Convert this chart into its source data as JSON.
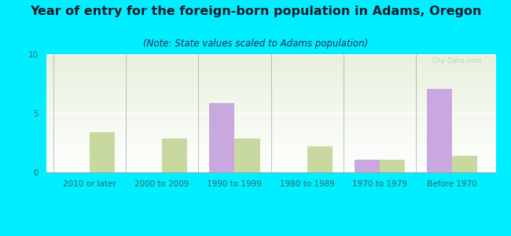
{
  "title": "Year of entry for the foreign-born population in Adams, Oregon",
  "subtitle": "(Note: State values scaled to Adams population)",
  "categories": [
    "2010 or later",
    "2000 to 2009",
    "1990 to 1999",
    "1980 to 1989",
    "1970 to 1979",
    "Before 1970"
  ],
  "adams_values": [
    0,
    0,
    5.9,
    0,
    1.1,
    7.1
  ],
  "oregon_values": [
    3.4,
    2.9,
    2.9,
    2.2,
    1.1,
    1.4
  ],
  "adams_color": "#c9a8e0",
  "oregon_color": "#c8d9a0",
  "background_color": "#00eeff",
  "chart_bg_top": "#e8f0dc",
  "chart_bg_bottom": "#ffffff",
  "ylim": [
    0,
    10
  ],
  "yticks": [
    0,
    5,
    10
  ],
  "bar_width": 0.35,
  "title_fontsize": 11.5,
  "subtitle_fontsize": 8.5,
  "tick_fontsize": 7.5,
  "legend_fontsize": 9,
  "title_color": "#1a1a2e",
  "subtitle_color": "#2a2a4a",
  "tick_color": "#336666"
}
